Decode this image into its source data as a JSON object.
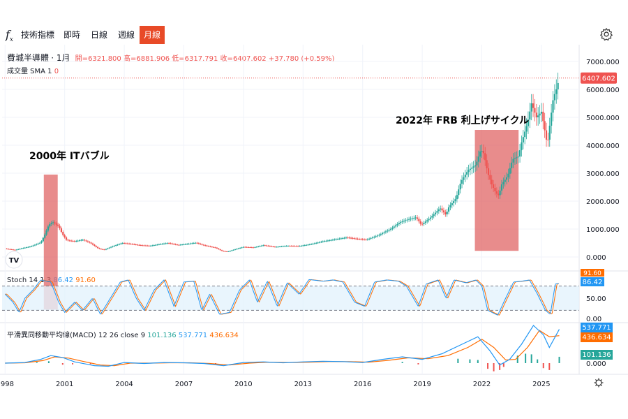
{
  "toolbar": {
    "indicators_label": "技術指標",
    "intervals": [
      "即時",
      "日線",
      "週線",
      "月線"
    ],
    "active_interval": "月線"
  },
  "symbol": {
    "name": "費城半導體",
    "interval": "1月",
    "open_label": "開=",
    "open": "6321.800",
    "high_label": "高=",
    "high": "6881.906",
    "low_label": "低=",
    "low": "6317.791",
    "close_label": "收=",
    "close": "6407.602",
    "change": "+37.780 (+0.59%)"
  },
  "volume_legend": {
    "name": "成交量 SMA 1",
    "value": "0"
  },
  "stoch_legend": {
    "name": "Stoch 14 1 3",
    "k": "86.42",
    "d": "91.60"
  },
  "macd_legend": {
    "name": "平滑異同移動平均線(MACD) 12 26 close 9",
    "hist": "101.136",
    "macd": "537.771",
    "signal": "436.634"
  },
  "annotations": [
    {
      "text": "2000年 ITバブル"
    },
    {
      "text": "2022年 FRB 利上げサイクル"
    }
  ],
  "colors": {
    "up": "#26a69a",
    "down": "#ef5350",
    "accent": "#e84a27",
    "stoch_k": "#2196f3",
    "stoch_d": "#ff6d00",
    "macd": "#2196f3",
    "signal": "#ff6d00",
    "highlight": "#e06666"
  },
  "chart_data": {
    "type": "candlestick",
    "price_axis": {
      "ticks": [
        "0.000",
        "1000.000",
        "2000.000",
        "3000.000",
        "4000.000",
        "5000.000",
        "6000.000",
        "7000.000"
      ],
      "range": [
        -500,
        7500
      ],
      "last_price_label": "6407.602"
    },
    "stoch_axis": {
      "ticks": [
        "0.00",
        "50.00"
      ],
      "range": [
        0,
        100
      ],
      "upper_band": 80,
      "lower_band": 20,
      "k_label": "86.42",
      "d_label": "91.60"
    },
    "macd_axis": {
      "ticks": [
        "0.000"
      ],
      "macd_label": "537.771",
      "signal_label": "436.634",
      "hist_label": "101.136"
    },
    "x_ticks": [
      "1998",
      "2001",
      "2004",
      "2007",
      "2010",
      "2013",
      "2016",
      "2019",
      "2022",
      "2025"
    ],
    "x_range": [
      1997.85,
      2026.9
    ],
    "highlights": [
      {
        "from": 1999.95,
        "to": 2000.65,
        "price_top": 2950,
        "stoch_bottom": 22
      },
      {
        "from": 2021.65,
        "to": 2023.85,
        "price_top": 4550,
        "price_bottom": 220
      }
    ],
    "price_path": [
      [
        1998.0,
        300
      ],
      [
        1998.5,
        250
      ],
      [
        1998.9,
        320
      ],
      [
        1999.3,
        380
      ],
      [
        1999.8,
        520
      ],
      [
        2000.0,
        800
      ],
      [
        2000.2,
        1150
      ],
      [
        2000.4,
        1250
      ],
      [
        2000.7,
        1100
      ],
      [
        2000.9,
        800
      ],
      [
        2001.1,
        600
      ],
      [
        2001.5,
        560
      ],
      [
        2001.9,
        620
      ],
      [
        2002.3,
        500
      ],
      [
        2002.7,
        300
      ],
      [
        2003.0,
        260
      ],
      [
        2003.4,
        380
      ],
      [
        2003.9,
        500
      ],
      [
        2004.3,
        470
      ],
      [
        2004.8,
        420
      ],
      [
        2005.3,
        400
      ],
      [
        2005.8,
        460
      ],
      [
        2006.2,
        500
      ],
      [
        2006.7,
        430
      ],
      [
        2007.2,
        470
      ],
      [
        2007.6,
        510
      ],
      [
        2008.0,
        420
      ],
      [
        2008.6,
        330
      ],
      [
        2008.9,
        220
      ],
      [
        2009.2,
        190
      ],
      [
        2009.6,
        280
      ],
      [
        2010.0,
        360
      ],
      [
        2010.5,
        340
      ],
      [
        2011.0,
        420
      ],
      [
        2011.6,
        360
      ],
      [
        2012.2,
        400
      ],
      [
        2012.8,
        390
      ],
      [
        2013.4,
        460
      ],
      [
        2014.0,
        560
      ],
      [
        2014.6,
        630
      ],
      [
        2015.2,
        700
      ],
      [
        2015.8,
        640
      ],
      [
        2016.2,
        620
      ],
      [
        2016.8,
        780
      ],
      [
        2017.4,
        1000
      ],
      [
        2017.9,
        1250
      ],
      [
        2018.3,
        1350
      ],
      [
        2018.7,
        1420
      ],
      [
        2018.95,
        1150
      ],
      [
        2019.4,
        1400
      ],
      [
        2019.9,
        1750
      ],
      [
        2020.2,
        1500
      ],
      [
        2020.3,
        1750
      ],
      [
        2020.7,
        2100
      ],
      [
        2020.95,
        2700
      ],
      [
        2021.3,
        3100
      ],
      [
        2021.7,
        3300
      ],
      [
        2021.95,
        3850
      ],
      [
        2022.1,
        3700
      ],
      [
        2022.3,
        3000
      ],
      [
        2022.5,
        2600
      ],
      [
        2022.7,
        2300
      ],
      [
        2022.85,
        2200
      ],
      [
        2023.0,
        2600
      ],
      [
        2023.3,
        2900
      ],
      [
        2023.55,
        3500
      ],
      [
        2023.85,
        3600
      ],
      [
        2024.0,
        4100
      ],
      [
        2024.3,
        4800
      ],
      [
        2024.5,
        5500
      ],
      [
        2024.75,
        5000
      ],
      [
        2025.0,
        5200
      ],
      [
        2025.2,
        4400
      ],
      [
        2025.3,
        4000
      ],
      [
        2025.45,
        4900
      ],
      [
        2025.6,
        5700
      ],
      [
        2025.75,
        6000
      ],
      [
        2025.9,
        6407.6
      ]
    ],
    "stoch_path": [
      [
        1998.0,
        60
      ],
      [
        1998.4,
        40
      ],
      [
        1998.7,
        15
      ],
      [
        1999.0,
        50
      ],
      [
        1999.4,
        70
      ],
      [
        1999.8,
        95
      ],
      [
        2000.3,
        90
      ],
      [
        2000.7,
        40
      ],
      [
        2001.0,
        15
      ],
      [
        2001.5,
        40
      ],
      [
        2001.9,
        20
      ],
      [
        2002.4,
        50
      ],
      [
        2002.8,
        10
      ],
      [
        2003.3,
        50
      ],
      [
        2003.8,
        90
      ],
      [
        2004.2,
        95
      ],
      [
        2004.6,
        50
      ],
      [
        2005.0,
        20
      ],
      [
        2005.5,
        70
      ],
      [
        2006.0,
        95
      ],
      [
        2006.5,
        30
      ],
      [
        2007.0,
        90
      ],
      [
        2007.5,
        92
      ],
      [
        2007.9,
        20
      ],
      [
        2008.3,
        60
      ],
      [
        2008.8,
        10
      ],
      [
        2009.3,
        15
      ],
      [
        2009.8,
        70
      ],
      [
        2010.3,
        95
      ],
      [
        2010.7,
        40
      ],
      [
        2011.2,
        92
      ],
      [
        2011.7,
        30
      ],
      [
        2012.2,
        88
      ],
      [
        2012.8,
        60
      ],
      [
        2013.3,
        96
      ],
      [
        2014.0,
        92
      ],
      [
        2014.5,
        95
      ],
      [
        2015.0,
        90
      ],
      [
        2015.6,
        40
      ],
      [
        2016.1,
        30
      ],
      [
        2016.6,
        90
      ],
      [
        2017.2,
        95
      ],
      [
        2017.8,
        92
      ],
      [
        2018.2,
        80
      ],
      [
        2018.8,
        30
      ],
      [
        2019.2,
        85
      ],
      [
        2019.8,
        95
      ],
      [
        2020.2,
        50
      ],
      [
        2020.6,
        95
      ],
      [
        2021.2,
        88
      ],
      [
        2021.7,
        95
      ],
      [
        2022.0,
        80
      ],
      [
        2022.3,
        20
      ],
      [
        2022.8,
        8
      ],
      [
        2023.2,
        50
      ],
      [
        2023.6,
        90
      ],
      [
        2024.0,
        92
      ],
      [
        2024.4,
        95
      ],
      [
        2024.8,
        60
      ],
      [
        2025.2,
        20
      ],
      [
        2025.45,
        10
      ],
      [
        2025.7,
        85
      ],
      [
        2025.9,
        86.42
      ]
    ],
    "macd_path": [
      [
        1998.0,
        0
      ],
      [
        1999.0,
        10
      ],
      [
        1999.8,
        60
      ],
      [
        2000.3,
        120
      ],
      [
        2000.9,
        90
      ],
      [
        2001.5,
        20
      ],
      [
        2002.5,
        -40
      ],
      [
        2003.2,
        -50
      ],
      [
        2004.0,
        10
      ],
      [
        2005.0,
        -5
      ],
      [
        2006.0,
        10
      ],
      [
        2007.0,
        5
      ],
      [
        2008.0,
        -5
      ],
      [
        2009.0,
        -40
      ],
      [
        2010.0,
        10
      ],
      [
        2011.0,
        20
      ],
      [
        2012.0,
        5
      ],
      [
        2013.0,
        20
      ],
      [
        2014.0,
        30
      ],
      [
        2015.0,
        25
      ],
      [
        2016.0,
        10
      ],
      [
        2017.0,
        60
      ],
      [
        2018.0,
        100
      ],
      [
        2019.0,
        60
      ],
      [
        2020.0,
        150
      ],
      [
        2021.0,
        300
      ],
      [
        2021.8,
        420
      ],
      [
        2022.4,
        200
      ],
      [
        2022.9,
        -30
      ],
      [
        2023.4,
        60
      ],
      [
        2024.0,
        300
      ],
      [
        2024.6,
        600
      ],
      [
        2025.1,
        450
      ],
      [
        2025.4,
        250
      ],
      [
        2025.9,
        537.771
      ]
    ],
    "signal_path": [
      [
        1998.0,
        0
      ],
      [
        1999.0,
        5
      ],
      [
        1999.9,
        40
      ],
      [
        2000.5,
        100
      ],
      [
        2001.2,
        80
      ],
      [
        2001.9,
        30
      ],
      [
        2002.8,
        -30
      ],
      [
        2003.5,
        -40
      ],
      [
        2004.3,
        0
      ],
      [
        2005.3,
        0
      ],
      [
        2006.3,
        5
      ],
      [
        2007.3,
        5
      ],
      [
        2008.3,
        -5
      ],
      [
        2009.3,
        -30
      ],
      [
        2010.3,
        0
      ],
      [
        2011.3,
        15
      ],
      [
        2012.3,
        10
      ],
      [
        2013.3,
        15
      ],
      [
        2014.3,
        25
      ],
      [
        2015.3,
        25
      ],
      [
        2016.3,
        15
      ],
      [
        2017.3,
        45
      ],
      [
        2018.3,
        85
      ],
      [
        2019.3,
        70
      ],
      [
        2020.3,
        120
      ],
      [
        2021.3,
        250
      ],
      [
        2022.0,
        380
      ],
      [
        2022.6,
        250
      ],
      [
        2023.2,
        50
      ],
      [
        2023.7,
        60
      ],
      [
        2024.3,
        250
      ],
      [
        2024.9,
        520
      ],
      [
        2025.4,
        420
      ],
      [
        2025.9,
        436.634
      ]
    ],
    "macd_hist_pos": [
      [
        1999.6,
        15
      ],
      [
        2000.2,
        30
      ],
      [
        2018.0,
        20
      ],
      [
        2020.8,
        70
      ],
      [
        2021.4,
        60
      ],
      [
        2021.8,
        50
      ],
      [
        2023.8,
        120
      ],
      [
        2024.2,
        150
      ],
      [
        2024.5,
        140
      ],
      [
        2024.8,
        60
      ],
      [
        2025.9,
        101.136
      ]
    ],
    "macd_hist_neg": [
      [
        2000.9,
        -25
      ],
      [
        2001.4,
        -20
      ],
      [
        2002.3,
        -15
      ],
      [
        2008.6,
        -10
      ],
      [
        2018.8,
        -20
      ],
      [
        2022.3,
        -90
      ],
      [
        2022.6,
        -130
      ],
      [
        2022.9,
        -110
      ],
      [
        2023.1,
        -60
      ],
      [
        2025.1,
        -80
      ],
      [
        2025.4,
        -110
      ]
    ]
  }
}
